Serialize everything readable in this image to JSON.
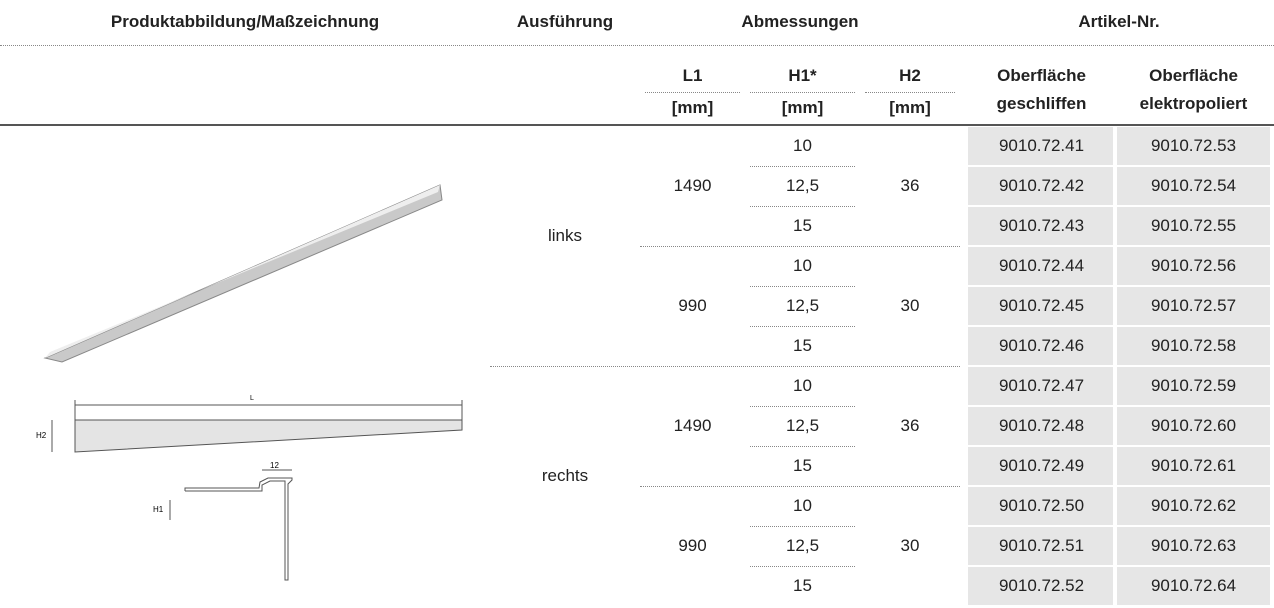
{
  "header": {
    "image": "Produktabbildung/Maßzeichnung",
    "variant": "Ausführung",
    "dimensions": "Abmessungen",
    "article": "Artikel-Nr."
  },
  "subheader": {
    "l1": "L1",
    "h1": "H1*",
    "h2": "H2",
    "units": [
      "[mm]",
      "[mm]",
      "[mm]"
    ],
    "surface_ground": [
      "Oberfläche",
      "geschliffen"
    ],
    "surface_polished": [
      "Oberfläche",
      "elektropoliert"
    ]
  },
  "drawing": {
    "length": "L",
    "h2": "H2",
    "width": "12",
    "h1": "H1"
  },
  "groups": [
    {
      "variant": "links",
      "lengths": [
        {
          "l1": "1490",
          "h2": "36",
          "rows": [
            {
              "h1": "10",
              "ground": "9010.72.41",
              "polished": "9010.72.53"
            },
            {
              "h1": "12,5",
              "ground": "9010.72.42",
              "polished": "9010.72.54"
            },
            {
              "h1": "15",
              "ground": "9010.72.43",
              "polished": "9010.72.55"
            }
          ]
        },
        {
          "l1": "990",
          "h2": "30",
          "rows": [
            {
              "h1": "10",
              "ground": "9010.72.44",
              "polished": "9010.72.56"
            },
            {
              "h1": "12,5",
              "ground": "9010.72.45",
              "polished": "9010.72.57"
            },
            {
              "h1": "15",
              "ground": "9010.72.46",
              "polished": "9010.72.58"
            }
          ]
        }
      ]
    },
    {
      "variant": "rechts",
      "lengths": [
        {
          "l1": "1490",
          "h2": "36",
          "rows": [
            {
              "h1": "10",
              "ground": "9010.72.47",
              "polished": "9010.72.59"
            },
            {
              "h1": "12,5",
              "ground": "9010.72.48",
              "polished": "9010.72.60"
            },
            {
              "h1": "15",
              "ground": "9010.72.49",
              "polished": "9010.72.61"
            }
          ]
        },
        {
          "l1": "990",
          "h2": "30",
          "rows": [
            {
              "h1": "10",
              "ground": "9010.72.50",
              "polished": "9010.72.62"
            },
            {
              "h1": "12,5",
              "ground": "9010.72.51",
              "polished": "9010.72.63"
            },
            {
              "h1": "15",
              "ground": "9010.72.52",
              "polished": "9010.72.64"
            }
          ]
        }
      ]
    }
  ]
}
